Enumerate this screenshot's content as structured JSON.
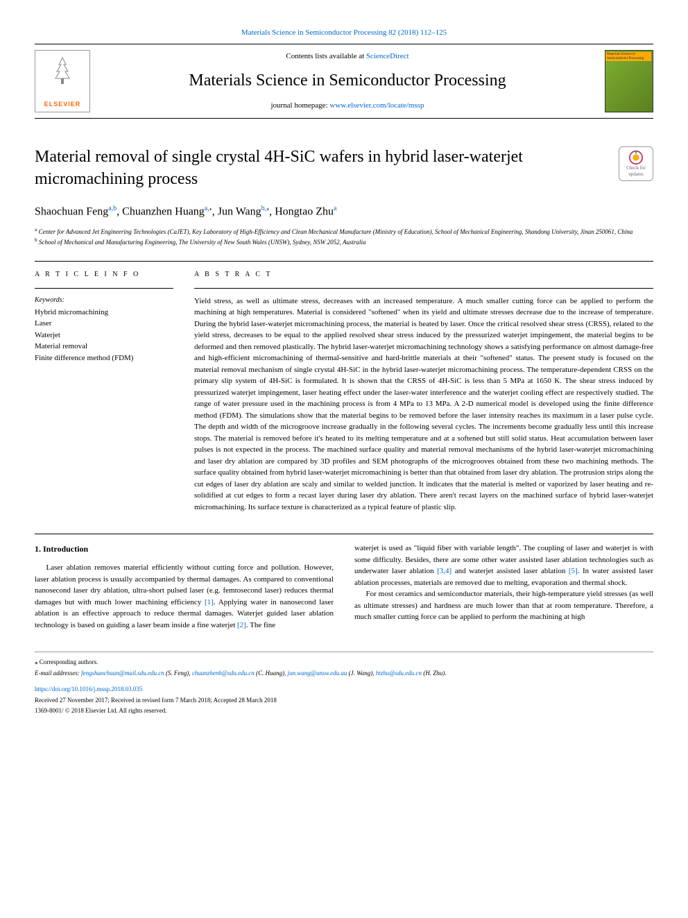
{
  "header": {
    "citation": "Materials Science in Semiconductor Processing 82 (2018) 112–125",
    "contents_prefix": "Contents lists available at ",
    "contents_link": "ScienceDirect",
    "journal_title": "Materials Science in Semiconductor Processing",
    "homepage_prefix": "journal homepage: ",
    "homepage_link": "www.elsevier.com/locate/mssp",
    "publisher": "ELSEVIER",
    "cover_label": "Materials Science in Semiconductor Processing"
  },
  "updates_badge": {
    "line1": "Check for",
    "line2": "updates"
  },
  "article": {
    "title": "Material removal of single crystal 4H-SiC wafers in hybrid laser-waterjet micromachining process",
    "authors_html": "Shaochuan Feng<sup>a,b</sup>, Chuanzhen Huang<sup>a,</sup><span class='t-marker'>⁎</span>, Jun Wang<sup>b,</sup><span class='t-marker'>⁎</span>, Hongtao Zhu<sup>a</sup>",
    "affiliations": {
      "a": "Center for Advanced Jet Engineering Technologies (CaJET), Key Laboratory of High-Efficiency and Clean Mechanical Manufacture (Ministry of Education), School of Mechanical Engineering, Shandong University, Jinan 250061, China",
      "b": "School of Mechanical and Manufacturing Engineering, The University of New South Wales (UNSW), Sydney, NSW 2052, Australia"
    }
  },
  "info": {
    "section_label": "A R T I C L E  I N F O",
    "keywords_label": "Keywords:",
    "keywords": [
      "Hybrid micromachining",
      "Laser",
      "Waterjet",
      "Material removal",
      "Finite difference method (FDM)"
    ]
  },
  "abstract": {
    "section_label": "A B S T R A C T",
    "text": "Yield stress, as well as ultimate stress, decreases with an increased temperature. A much smaller cutting force can be applied to perform the machining at high temperatures. Material is considered \"softened\" when its yield and ultimate stresses decrease due to the increase of temperature. During the hybrid laser-waterjet micromachining process, the material is heated by laser. Once the critical resolved shear stress (CRSS), related to the yield stress, decreases to be equal to the applied resolved shear stress induced by the pressurized waterjet impingement, the material begins to be deformed and then removed plastically. The hybrid laser-waterjet micromachining technology shows a satisfying performance on almost damage-free and high-efficient micromachining of thermal-sensitive and hard-brittle materials at their \"softened\" status. The present study is focused on the material removal mechanism of single crystal 4H-SiC in the hybrid laser-waterjet micromachining process. The temperature-dependent CRSS on the primary slip system of 4H-SiC is formulated. It is shown that the CRSS of 4H-SiC is less than 5 MPa at 1650 K. The shear stress induced by pressurized waterjet impingement, laser heating effect under the laser-water interference and the waterjet cooling effect are respectively studied. The range of water pressure used in the machining process is from 4 MPa to 13 MPa. A 2-D numerical model is developed using the finite difference method (FDM). The simulations show that the material begins to be removed before the laser intensity reaches its maximum in a laser pulse cycle. The depth and width of the microgroove increase gradually in the following several cycles. The increments become gradually less until this increase stops. The material is removed before it's heated to its melting temperature and at a softened but still solid status. Heat accumulation between laser pulses is not expected in the process. The machined surface quality and material removal mechanisms of the hybrid laser-waterjet micromachining and laser dry ablation are compared by 3D profiles and SEM photographs of the microgrooves obtained from these two machining methods. The surface quality obtained from hybrid laser-waterjet micromachining is better than that obtained from laser dry ablation. The protrusion strips along the cut edges of laser dry ablation are scaly and similar to welded junction. It indicates that the material is melted or vaporized by laser heating and re-solidified at cut edges to form a recast layer during laser dry ablation. There aren't recast layers on the machined surface of hybrid laser-waterjet micromachining. Its surface texture is characterized as a typical feature of plastic slip."
  },
  "body": {
    "section_number": "1.",
    "section_title": "Introduction",
    "para1": "Laser ablation removes material efficiently without cutting force and pollution. However, laser ablation process is usually accompanied by thermal damages. As compared to conventional nanosecond laser dry ablation, ultra-short pulsed laser (e.g. femtosecond laser) reduces thermal damages but with much lower machining efficiency [1]. Applying water in nanosecond laser ablation is an effective approach to reduce thermal damages. Waterjet guided laser ablation technology is based on guiding a laser beam inside a fine waterjet [2]. The fine",
    "para2": "waterjet is used as \"liquid fiber with variable length\". The coupling of laser and waterjet is with some difficulty. Besides, there are some other water assisted laser ablation technologies such as underwater laser ablation [3,4] and waterjet assisted laser ablation [5]. In water assisted laser ablation processes, materials are removed due to melting, evaporation and thermal shock.",
    "para3": "For most ceramics and semiconductor materials, their high-temperature yield stresses (as well as ultimate stresses) and hardness are much lower than that at room temperature. Therefore, a much smaller cutting force can be applied to perform the machining at high",
    "ref_links": {
      "r1": "[1]",
      "r2": "[2]",
      "r34": "[3,4]",
      "r5": "[5]"
    }
  },
  "footer": {
    "corresponding": "⁎ Corresponding authors.",
    "email_label": "E-mail addresses:",
    "emails": [
      {
        "addr": "fengshaochuan@mail.sdu.edu.cn",
        "name": "(S. Feng)"
      },
      {
        "addr": "chuanzhenh@sdu.edu.cn",
        "name": "(C. Huang)"
      },
      {
        "addr": "jun.wang@unsw.edu.au",
        "name": "(J. Wang)"
      },
      {
        "addr": "htzhu@sdu.edu.cn",
        "name": "(H. Zhu)"
      }
    ],
    "doi": "https://doi.org/10.1016/j.mssp.2018.03.035",
    "received": "Received 27 November 2017; Received in revised form 7 March 2018; Accepted 28 March 2018",
    "copyright": "1369-8001/ © 2018 Elsevier Ltd. All rights reserved."
  },
  "colors": {
    "link": "#0066cc",
    "elsevier_orange": "#ff6600",
    "cover_green": "#7fb030"
  }
}
